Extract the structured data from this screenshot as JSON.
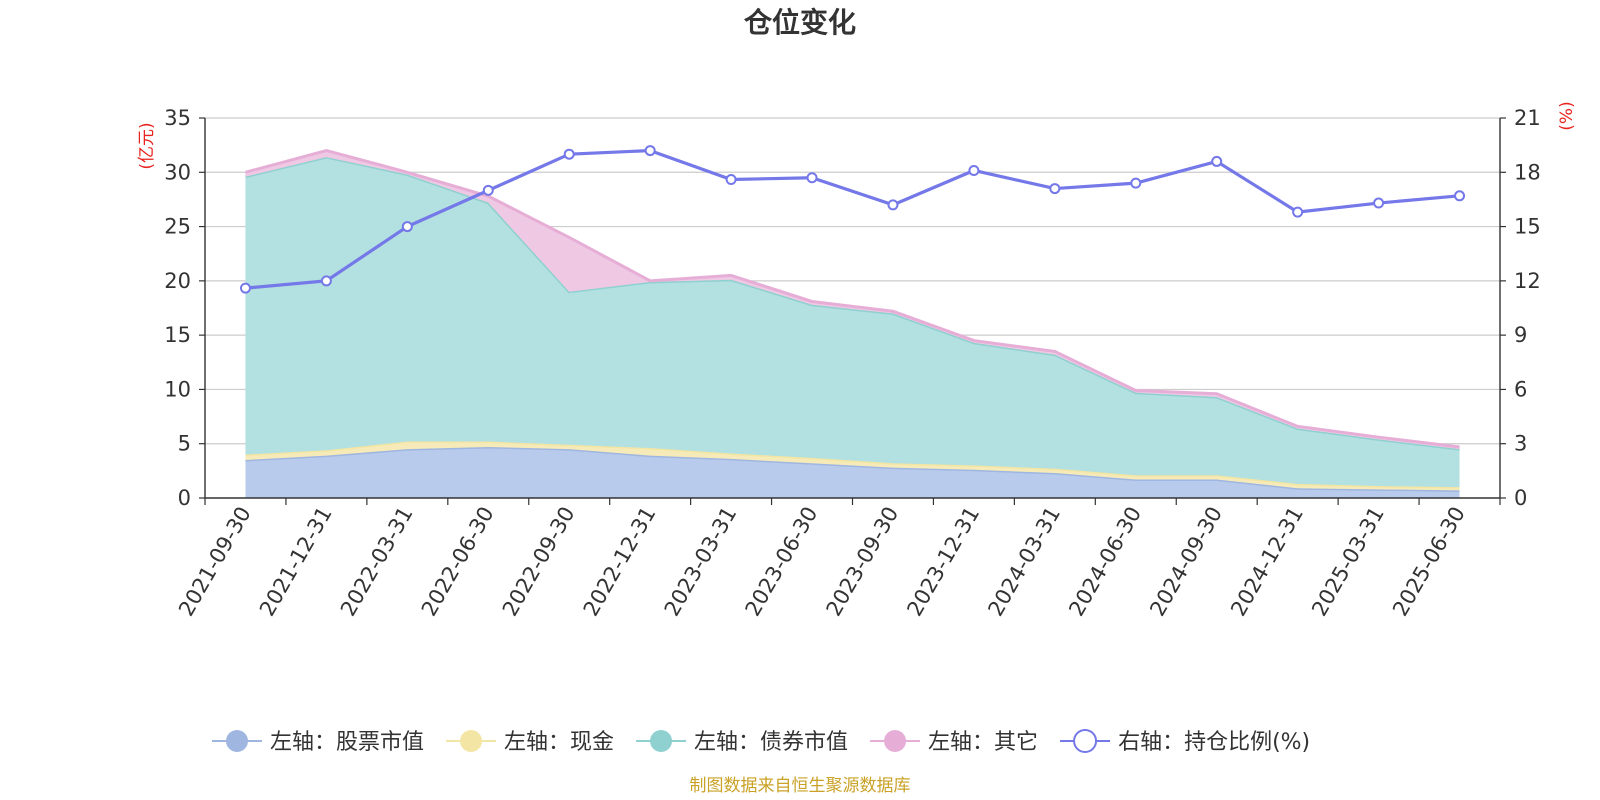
{
  "chart_data": {
    "type": "area",
    "title": "仓位变化",
    "x": [
      "2021-09-30",
      "2021-12-31",
      "2022-03-31",
      "2022-06-30",
      "2022-09-30",
      "2022-12-31",
      "2023-03-31",
      "2023-06-30",
      "2023-09-30",
      "2023-12-31",
      "2024-03-31",
      "2024-06-30",
      "2024-09-30",
      "2024-12-31",
      "2025-03-31",
      "2025-06-30"
    ],
    "left_axis": {
      "unit_label": "(亿元)",
      "ylim": [
        0,
        35
      ],
      "ticks": [
        "0",
        "5",
        "10",
        "15",
        "20",
        "25",
        "30",
        "35"
      ]
    },
    "right_axis": {
      "unit_label": "(%)",
      "ylim": [
        0,
        21
      ],
      "ticks": [
        "0",
        "3",
        "6",
        "9",
        "12",
        "15",
        "18",
        "21"
      ]
    },
    "stacked": true,
    "grid": true,
    "legend_position": "bottom",
    "series": [
      {
        "name": "左轴：股票市值",
        "axis": "left",
        "kind": "area",
        "color": "#9fb6e0",
        "fill": "#b8cbec",
        "values": [
          3.5,
          3.9,
          4.5,
          4.7,
          4.5,
          3.9,
          3.6,
          3.2,
          2.8,
          2.6,
          2.3,
          1.7,
          1.7,
          0.9,
          0.8,
          0.7
        ]
      },
      {
        "name": "左轴：现金",
        "axis": "left",
        "kind": "area",
        "color": "#f3e5a3",
        "fill": "#f6ebb8",
        "values": [
          0.5,
          0.5,
          0.7,
          0.5,
          0.4,
          0.7,
          0.5,
          0.5,
          0.4,
          0.4,
          0.4,
          0.4,
          0.4,
          0.4,
          0.3,
          0.3
        ]
      },
      {
        "name": "左轴：债券市值",
        "axis": "left",
        "kind": "area",
        "color": "#8fd0d0",
        "fill": "#b3e0e0",
        "values": [
          25.6,
          27.0,
          24.6,
          22.0,
          14.1,
          15.3,
          16.0,
          14.1,
          13.8,
          11.3,
          10.5,
          7.6,
          7.2,
          5.1,
          4.3,
          3.5
        ]
      },
      {
        "name": "左轴：其它",
        "axis": "left",
        "kind": "area",
        "color": "#e6aed6",
        "fill": "#efc9e4",
        "values": [
          0.4,
          0.6,
          0.2,
          0.6,
          5.0,
          0.1,
          0.4,
          0.3,
          0.2,
          0.2,
          0.3,
          0.2,
          0.3,
          0.2,
          0.2,
          0.2
        ]
      },
      {
        "name": "右轴：持仓比例(%)",
        "axis": "right",
        "kind": "line",
        "color": "#7478e8",
        "values": [
          11.6,
          12.0,
          15.0,
          17.0,
          19.0,
          19.2,
          17.6,
          17.7,
          16.2,
          18.1,
          17.1,
          17.4,
          18.6,
          15.8,
          16.3,
          16.7
        ]
      }
    ],
    "source_note": "制图数据来自恒生聚源数据库",
    "colors": {
      "unit_label": "#e6231e",
      "source_note": "#c9a227",
      "axis": "#333333",
      "grid": "#cccccc"
    }
  }
}
